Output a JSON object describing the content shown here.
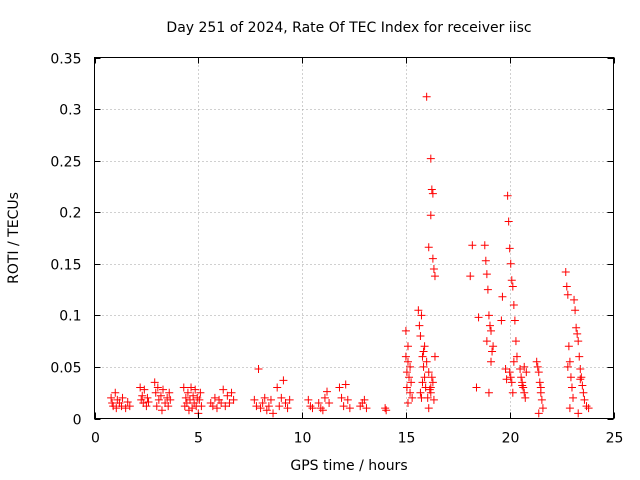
{
  "chart_data": {
    "type": "scatter",
    "title": "Day 251 of 2024, Rate Of TEC Index for receiver iisc",
    "xlabel": "GPS time / hours",
    "ylabel": "ROTI / TECUs",
    "xlim": [
      0,
      25
    ],
    "ylim": [
      0,
      0.35
    ],
    "xticks": [
      0,
      5,
      10,
      15,
      20,
      25
    ],
    "xtick_labels": [
      "0",
      "5",
      "10",
      "15",
      "20",
      "25"
    ],
    "yticks": [
      0,
      0.05,
      0.1,
      0.15,
      0.2,
      0.25,
      0.3,
      0.35
    ],
    "ytick_labels": [
      "0",
      "0.05",
      "0.1",
      "0.15",
      "0.2",
      "0.25",
      "0.3",
      "0.35"
    ],
    "grid": true,
    "marker": "+",
    "color": "#ff0000",
    "series": [
      {
        "name": "ROTI",
        "x": [
          0.8,
          0.85,
          0.9,
          1.0,
          1.05,
          1.1,
          1.2,
          1.3,
          1.35,
          1.5,
          1.6,
          1.7,
          2.2,
          2.25,
          2.3,
          2.35,
          2.4,
          2.5,
          2.55,
          2.6,
          2.9,
          2.95,
          3.0,
          3.05,
          3.1,
          3.2,
          3.25,
          3.3,
          3.4,
          3.5,
          3.55,
          3.6,
          3.65,
          4.3,
          4.35,
          4.4,
          4.45,
          4.5,
          4.55,
          4.6,
          4.65,
          4.7,
          4.75,
          4.8,
          4.85,
          4.9,
          4.95,
          5.0,
          5.05,
          5.1,
          5.15,
          5.6,
          5.7,
          5.8,
          5.9,
          6.0,
          6.1,
          6.2,
          6.3,
          6.4,
          6.5,
          6.6,
          6.7,
          7.7,
          7.8,
          7.9,
          8.0,
          8.1,
          8.2,
          8.3,
          8.4,
          8.5,
          8.6,
          8.8,
          8.9,
          9.0,
          9.1,
          9.2,
          9.3,
          9.4,
          10.3,
          10.4,
          10.5,
          10.8,
          10.9,
          11.0,
          11.1,
          11.2,
          11.3,
          11.8,
          11.9,
          12.0,
          12.1,
          12.2,
          12.3,
          12.8,
          12.9,
          13.0,
          13.1,
          14.0,
          14.05,
          15.0,
          15.0,
          15.05,
          15.05,
          15.1,
          15.1,
          15.1,
          15.15,
          15.2,
          15.2,
          15.25,
          15.3,
          15.6,
          15.65,
          15.7,
          15.75,
          15.8,
          15.85,
          15.9,
          15.95,
          15.9,
          15.8,
          15.85,
          15.7,
          15.75,
          16.0,
          16.2,
          16.25,
          16.3,
          16.3,
          16.35,
          16.4,
          16.2,
          16.1,
          16.0,
          16.05,
          16.1,
          16.15,
          16.2,
          16.25,
          16.3,
          16.35,
          16.4,
          16.1,
          16.2,
          18.1,
          18.2,
          18.4,
          18.5,
          18.8,
          18.85,
          18.9,
          18.95,
          19.0,
          19.05,
          19.1,
          19.15,
          19.2,
          18.9,
          19.0,
          19.1,
          19.6,
          19.65,
          19.8,
          19.85,
          19.9,
          19.95,
          20.0,
          20.05,
          20.1,
          20.15,
          20.2,
          20.25,
          20.3,
          20.35,
          20.0,
          20.1,
          20.2,
          20.05,
          20.15,
          20.5,
          20.55,
          20.6,
          20.65,
          20.7,
          20.75,
          20.8,
          20.6,
          20.7,
          21.3,
          21.35,
          21.4,
          21.45,
          21.5,
          21.55,
          21.6,
          21.4,
          21.5,
          22.7,
          22.75,
          22.8,
          22.85,
          22.9,
          22.95,
          23.0,
          23.05,
          22.8,
          22.9,
          23.1,
          23.15,
          23.2,
          23.25,
          23.3,
          23.35,
          23.4,
          23.45,
          23.5,
          23.55,
          23.6,
          23.7,
          23.8,
          23.3,
          23.4
        ],
        "y": [
          0.02,
          0.015,
          0.012,
          0.025,
          0.01,
          0.018,
          0.015,
          0.012,
          0.02,
          0.01,
          0.016,
          0.012,
          0.03,
          0.018,
          0.022,
          0.015,
          0.028,
          0.012,
          0.02,
          0.016,
          0.035,
          0.025,
          0.012,
          0.03,
          0.018,
          0.022,
          0.008,
          0.028,
          0.015,
          0.02,
          0.012,
          0.025,
          0.018,
          0.03,
          0.012,
          0.02,
          0.015,
          0.025,
          0.008,
          0.018,
          0.03,
          0.01,
          0.022,
          0.015,
          0.028,
          0.012,
          0.02,
          0.005,
          0.018,
          0.025,
          0.012,
          0.015,
          0.012,
          0.02,
          0.01,
          0.018,
          0.015,
          0.028,
          0.012,
          0.022,
          0.015,
          0.025,
          0.018,
          0.018,
          0.012,
          0.048,
          0.01,
          0.015,
          0.02,
          0.008,
          0.012,
          0.018,
          0.005,
          0.03,
          0.012,
          0.02,
          0.037,
          0.015,
          0.01,
          0.018,
          0.018,
          0.012,
          0.01,
          0.015,
          0.01,
          0.008,
          0.02,
          0.026,
          0.015,
          0.03,
          0.02,
          0.012,
          0.033,
          0.018,
          0.01,
          0.012,
          0.015,
          0.018,
          0.01,
          0.01,
          0.008,
          0.085,
          0.06,
          0.045,
          0.03,
          0.015,
          0.055,
          0.07,
          0.04,
          0.025,
          0.05,
          0.035,
          0.02,
          0.105,
          0.09,
          0.08,
          0.1,
          0.06,
          0.05,
          0.04,
          0.03,
          0.07,
          0.035,
          0.065,
          0.025,
          0.02,
          0.312,
          0.252,
          0.222,
          0.218,
          0.155,
          0.145,
          0.138,
          0.197,
          0.166,
          0.055,
          0.02,
          0.045,
          0.028,
          0.025,
          0.04,
          0.035,
          0.018,
          0.06,
          0.01,
          0.03,
          0.138,
          0.168,
          0.03,
          0.098,
          0.168,
          0.153,
          0.14,
          0.125,
          0.1,
          0.09,
          0.085,
          0.065,
          0.07,
          0.075,
          0.025,
          0.055,
          0.095,
          0.118,
          0.048,
          0.038,
          0.216,
          0.191,
          0.165,
          0.15,
          0.134,
          0.128,
          0.11,
          0.095,
          0.075,
          0.06,
          0.045,
          0.035,
          0.055,
          0.04,
          0.025,
          0.048,
          0.04,
          0.035,
          0.03,
          0.025,
          0.02,
          0.045,
          0.032,
          0.05,
          0.055,
          0.05,
          0.045,
          0.035,
          0.025,
          0.018,
          0.01,
          0.005,
          0.03,
          0.142,
          0.128,
          0.12,
          0.07,
          0.055,
          0.04,
          0.03,
          0.02,
          0.05,
          0.01,
          0.115,
          0.105,
          0.088,
          0.082,
          0.075,
          0.06,
          0.048,
          0.04,
          0.032,
          0.025,
          0.018,
          0.012,
          0.01,
          0.005,
          0.038
        ]
      }
    ]
  }
}
